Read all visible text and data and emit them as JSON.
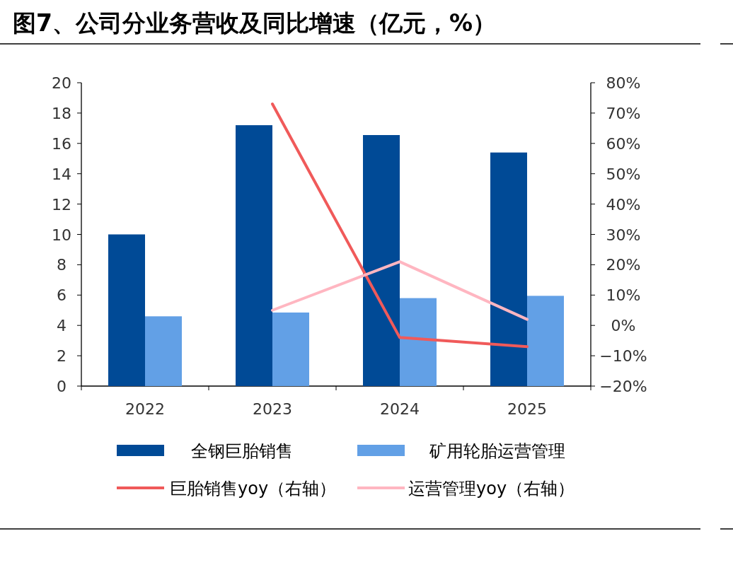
{
  "chart_data": {
    "type": "bar",
    "title": "图7、公司分业务营收及同比增速（亿元，%）",
    "categories": [
      "2022",
      "2023",
      "2024",
      "2025"
    ],
    "series": [
      {
        "name": "全钢巨胎销售",
        "color": "#004a96",
        "values": [
          10.0,
          17.2,
          16.55,
          15.4
        ]
      },
      {
        "name": "矿用轮胎运营管理",
        "color": "#62a0e6",
        "values": [
          4.6,
          4.85,
          5.8,
          5.95
        ]
      },
      {
        "name": "巨胎销售yoy（右轴）",
        "type": "line",
        "axis": "y2",
        "color": "#f05a5a",
        "values": [
          null,
          73,
          -4,
          -7
        ]
      },
      {
        "name": "运营管理yoy（右轴）",
        "type": "line",
        "axis": "y2",
        "color": "#ffb6c1",
        "values": [
          null,
          5,
          21,
          2
        ]
      }
    ],
    "ylim": [
      0,
      20
    ],
    "yticks": [
      0,
      2,
      4,
      6,
      8,
      10,
      12,
      14,
      16,
      18,
      20
    ],
    "y2lim": [
      -20,
      80
    ],
    "y2ticks": [
      {
        "value": -20,
        "label": "−20%"
      },
      {
        "value": -10,
        "label": "−10%"
      },
      {
        "value": 0,
        "label": "0%"
      },
      {
        "value": 10,
        "label": "10%"
      },
      {
        "value": 20,
        "label": "20%"
      },
      {
        "value": 30,
        "label": "30%"
      },
      {
        "value": 40,
        "label": "40%"
      },
      {
        "value": 50,
        "label": "50%"
      },
      {
        "value": 60,
        "label": "60%"
      },
      {
        "value": 70,
        "label": "70%"
      },
      {
        "value": 80,
        "label": "80%"
      }
    ],
    "legend": "bottom",
    "grid": false
  }
}
